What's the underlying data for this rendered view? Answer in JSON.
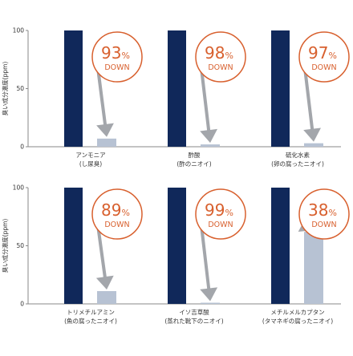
{
  "chart_data": [
    {
      "type": "bar",
      "ylabel": "臭い成分濃度(ppm)",
      "ylim": [
        0,
        100
      ],
      "yticks": [
        0,
        50,
        100
      ],
      "series": [
        {
          "name": "",
          "values": [
            100,
            100,
            100
          ]
        },
        {
          "name": "",
          "values": [
            7,
            2,
            3
          ]
        }
      ],
      "groups": [
        {
          "label_line1": "アンモニア",
          "label_line2": "(し尿臭)",
          "before": 100,
          "after": 7,
          "badge_value": "93",
          "badge_unit": "%",
          "badge_text": "DOWN"
        },
        {
          "label_line1": "酢酸",
          "label_line2": "(酢のニオイ)",
          "before": 100,
          "after": 2,
          "badge_value": "98",
          "badge_unit": "%",
          "badge_text": "DOWN"
        },
        {
          "label_line1": "硫化水素",
          "label_line2": "(卵の腐ったニオイ)",
          "before": 100,
          "after": 3,
          "badge_value": "97",
          "badge_unit": "%",
          "badge_text": "DOWN"
        }
      ]
    },
    {
      "type": "bar",
      "ylabel": "臭い成分濃度(ppm)",
      "ylim": [
        0,
        100
      ],
      "yticks": [
        0,
        50,
        100
      ],
      "series": [
        {
          "name": "",
          "values": [
            100,
            100,
            100
          ]
        },
        {
          "name": "",
          "values": [
            11,
            1,
            62
          ]
        }
      ],
      "groups": [
        {
          "label_line1": "トリメチルアミン",
          "label_line2": "(魚の腐ったニオイ)",
          "before": 100,
          "after": 11,
          "badge_value": "89",
          "badge_unit": "%",
          "badge_text": "DOWN"
        },
        {
          "label_line1": "イソ吉草酸",
          "label_line2": "(蒸れた靴下のニオイ)",
          "before": 100,
          "after": 1,
          "badge_value": "99",
          "badge_unit": "%",
          "badge_text": "DOWN"
        },
        {
          "label_line1": "メチルメルカプタン",
          "label_line2": "(タマネギの腐ったニオイ)",
          "before": 100,
          "after": 62,
          "badge_value": "38",
          "badge_unit": "%",
          "badge_text": "DOWN"
        }
      ]
    }
  ],
  "colors": {
    "before_bar": "#10285a",
    "after_bar": "#b7c2d3",
    "badge": "#d8602e",
    "arrow": "#9ea1a6",
    "axis": "#888888",
    "text": "#333333"
  }
}
